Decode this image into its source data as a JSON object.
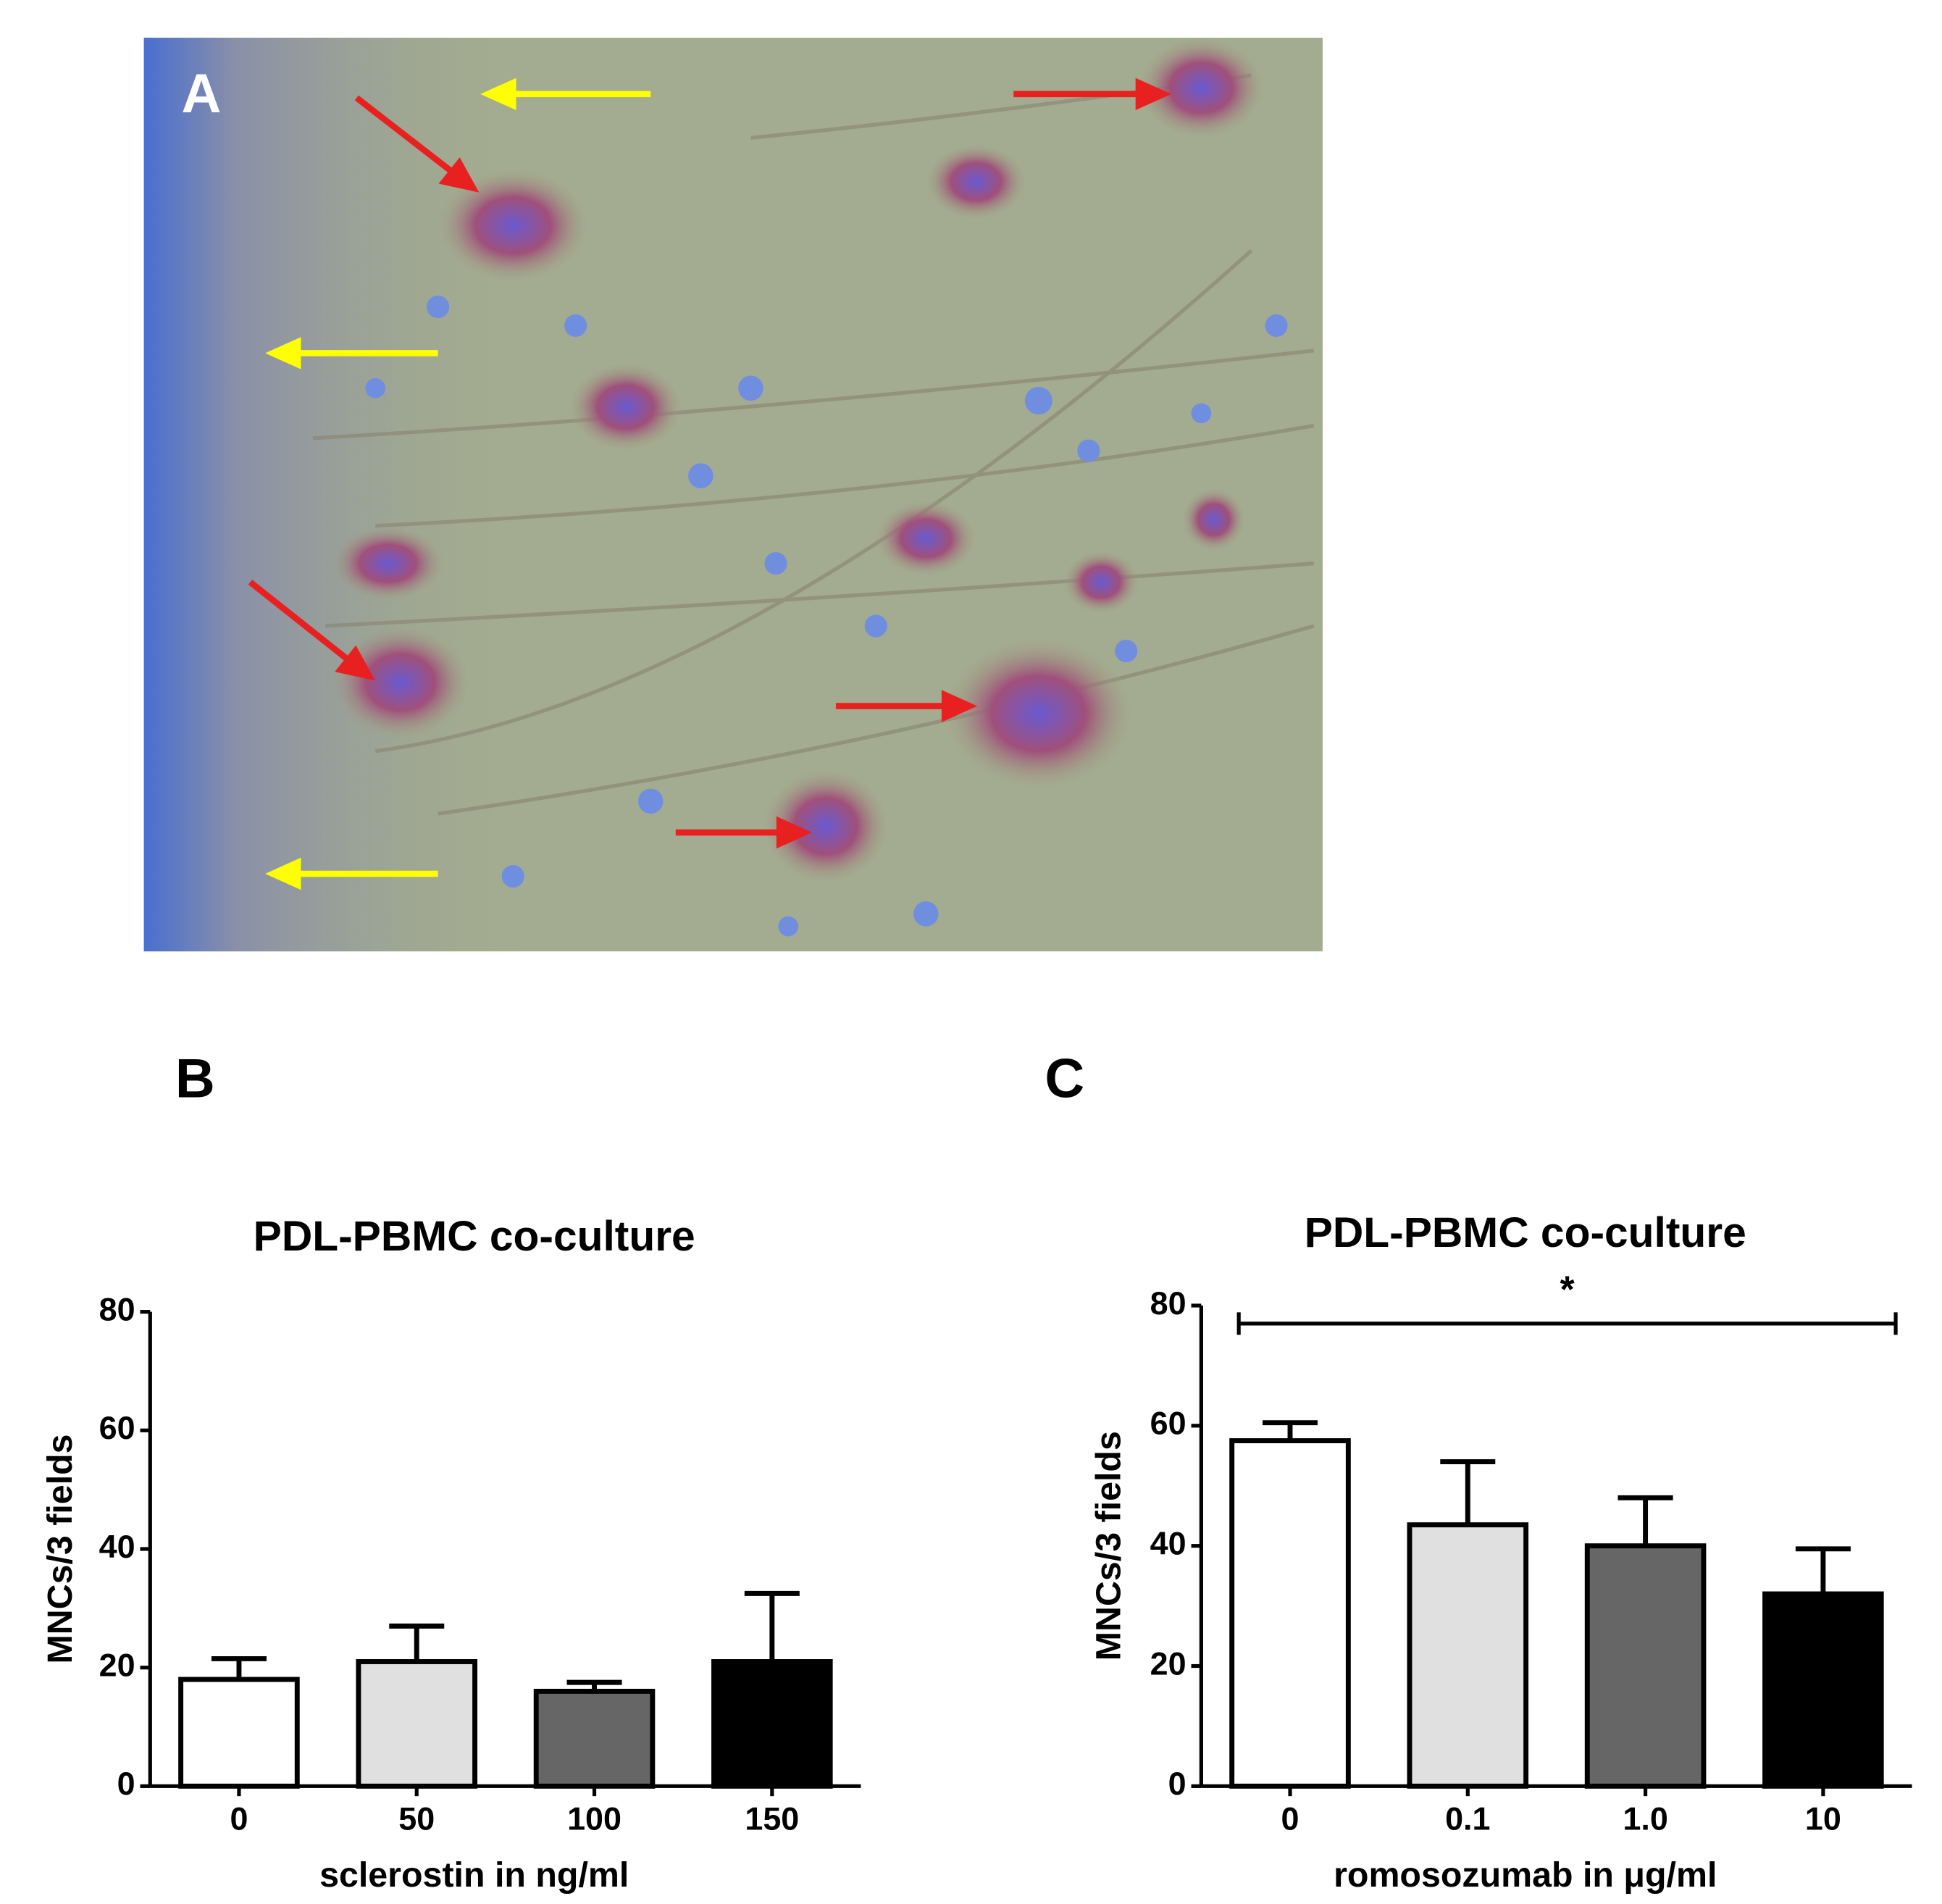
{
  "image_panel": {
    "label": "A"
  },
  "chart_data": [
    {
      "type": "bar",
      "panel_label": "B",
      "title": "PDL-PBMC co-culture",
      "x_label": "sclerostin in ng/ml",
      "y_label": "MNCs/3 fields",
      "categories": [
        "0",
        "50",
        "100",
        "150"
      ],
      "values": [
        18,
        21,
        16,
        21
      ],
      "errors": [
        3.5,
        6,
        1.5,
        11.5
      ],
      "colors": [
        "#ffffff",
        "#e0e0e0",
        "#666666",
        "#000000"
      ],
      "ylim": [
        0,
        80
      ],
      "yticks": [
        0,
        20,
        40,
        60,
        80
      ]
    },
    {
      "type": "bar",
      "panel_label": "C",
      "title": "PDL-PBMC co-culture",
      "x_label": "romosozumab in μg/ml",
      "y_label": "MNCs/3 fields",
      "categories": [
        "0",
        "0.1",
        "1.0",
        "10"
      ],
      "values": [
        57.5,
        43.5,
        40,
        32
      ],
      "errors": [
        3,
        10.5,
        8,
        7.5
      ],
      "colors": [
        "#ffffff",
        "#e0e0e0",
        "#666666",
        "#000000"
      ],
      "ylim": [
        0,
        80
      ],
      "yticks": [
        0,
        20,
        40,
        60,
        80
      ],
      "annotation": {
        "text": "*",
        "y": 77
      }
    }
  ]
}
